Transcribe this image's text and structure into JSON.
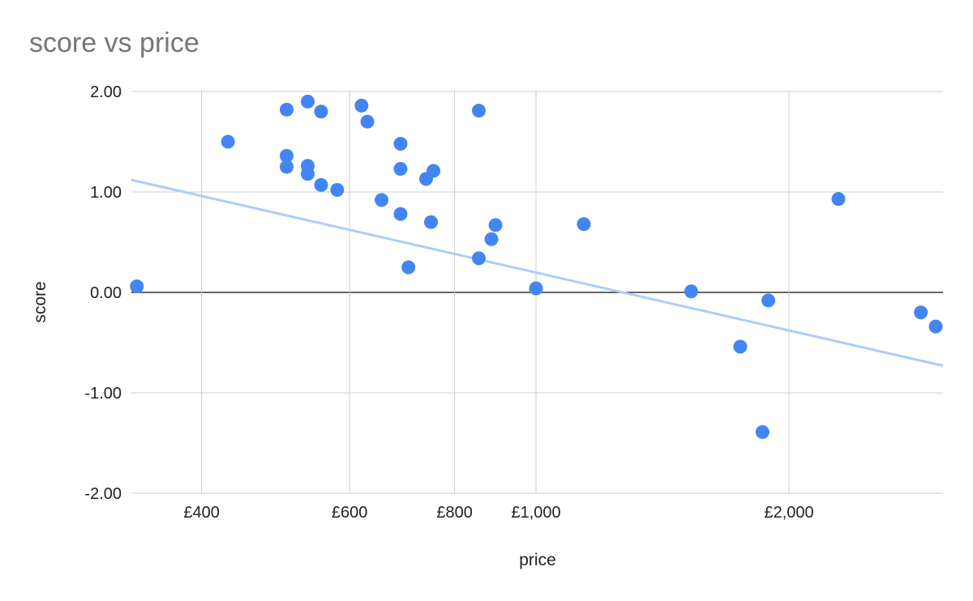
{
  "chart_data": {
    "type": "scatter",
    "title": "score vs price",
    "xlabel": "price",
    "ylabel": "score",
    "x_scale": "log",
    "xlim": [
      330,
      3050
    ],
    "ylim": [
      -2,
      2
    ],
    "x_ticks": [
      {
        "value": 400,
        "label": "£400"
      },
      {
        "value": 600,
        "label": "£600"
      },
      {
        "value": 800,
        "label": "£800"
      },
      {
        "value": 1000,
        "label": "£1,000"
      },
      {
        "value": 2000,
        "label": "£2,000"
      }
    ],
    "y_ticks": [
      {
        "value": 2,
        "label": "2.00"
      },
      {
        "value": 1,
        "label": "1.00"
      },
      {
        "value": 0,
        "label": "0.00"
      },
      {
        "value": -1,
        "label": "-1.00"
      },
      {
        "value": -2,
        "label": "-2.00"
      }
    ],
    "grid": true,
    "colors": {
      "points": "#4285f4",
      "trendline": "#aecbfa",
      "grid": "#cccccc",
      "zero_line": "#333333"
    },
    "points": [
      {
        "x": 335,
        "y": 0.06
      },
      {
        "x": 430,
        "y": 1.5
      },
      {
        "x": 505,
        "y": 1.82
      },
      {
        "x": 505,
        "y": 1.36
      },
      {
        "x": 505,
        "y": 1.25
      },
      {
        "x": 535,
        "y": 1.9
      },
      {
        "x": 535,
        "y": 1.26
      },
      {
        "x": 535,
        "y": 1.18
      },
      {
        "x": 555,
        "y": 1.8
      },
      {
        "x": 555,
        "y": 1.07
      },
      {
        "x": 580,
        "y": 1.02
      },
      {
        "x": 620,
        "y": 1.86
      },
      {
        "x": 630,
        "y": 1.7
      },
      {
        "x": 655,
        "y": 0.92
      },
      {
        "x": 690,
        "y": 1.48
      },
      {
        "x": 690,
        "y": 1.23
      },
      {
        "x": 690,
        "y": 0.78
      },
      {
        "x": 705,
        "y": 0.25
      },
      {
        "x": 740,
        "y": 1.13
      },
      {
        "x": 755,
        "y": 1.21
      },
      {
        "x": 750,
        "y": 0.7
      },
      {
        "x": 855,
        "y": 1.81
      },
      {
        "x": 855,
        "y": 0.34
      },
      {
        "x": 885,
        "y": 0.53
      },
      {
        "x": 895,
        "y": 0.67
      },
      {
        "x": 1000,
        "y": 0.04
      },
      {
        "x": 1140,
        "y": 0.68
      },
      {
        "x": 1530,
        "y": 0.01
      },
      {
        "x": 1750,
        "y": -0.54
      },
      {
        "x": 1890,
        "y": -0.08
      },
      {
        "x": 1860,
        "y": -1.39
      },
      {
        "x": 2290,
        "y": 0.93
      },
      {
        "x": 2870,
        "y": -0.2
      },
      {
        "x": 2990,
        "y": -0.34
      }
    ],
    "trendline": {
      "from": {
        "x": 330,
        "y": 1.12
      },
      "to": {
        "x": 3050,
        "y": -0.73
      }
    }
  }
}
